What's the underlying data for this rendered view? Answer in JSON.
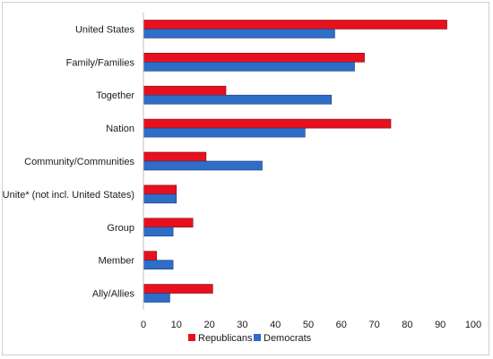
{
  "chart_data": {
    "type": "bar",
    "orientation": "horizontal",
    "categories": [
      "United States",
      "Family/Families",
      "Together",
      "Nation",
      "Community/Communities",
      "Unite* (not incl. United States)",
      "Group",
      "Member",
      "Ally/Allies"
    ],
    "series": [
      {
        "name": "Republicans",
        "color": "#e8101e",
        "values": [
          92,
          67,
          25,
          75,
          19,
          10,
          15,
          4,
          21
        ]
      },
      {
        "name": "Democrats",
        "color": "#2e6dc8",
        "values": [
          58,
          64,
          57,
          49,
          36,
          10,
          9,
          9,
          8
        ]
      }
    ],
    "xlim": [
      0,
      100
    ],
    "xticks": [
      0,
      10,
      20,
      30,
      40,
      50,
      60,
      70,
      80,
      90,
      100
    ],
    "grid": false,
    "legend_position": "bottom",
    "title": "",
    "xlabel": "",
    "ylabel": ""
  }
}
